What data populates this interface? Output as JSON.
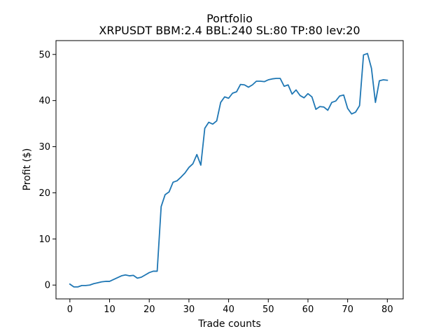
{
  "chart_data": {
    "type": "line",
    "title": "Portfolio",
    "subtitle": "XRPUSDT BBM:2.4 BBL:240 SL:80 TP:80 lev:20",
    "xlabel": "Trade counts",
    "ylabel": "Profit ($)",
    "xlim": [
      -3.5,
      84
    ],
    "ylim": [
      -3,
      53
    ],
    "xticks": [
      0,
      10,
      20,
      30,
      40,
      50,
      60,
      70,
      80
    ],
    "yticks": [
      0,
      10,
      20,
      30,
      40,
      50
    ],
    "grid": false,
    "series_color": "#1f77b4",
    "series": [
      {
        "x": [
          0,
          1,
          2,
          3,
          4,
          5,
          6,
          7,
          8,
          9,
          10,
          11,
          12,
          13,
          14,
          15,
          16,
          17,
          18,
          19,
          20,
          21,
          22,
          23,
          24,
          25,
          26,
          27,
          28,
          29,
          30,
          31,
          32,
          33,
          34,
          35,
          36,
          37,
          38,
          39,
          40,
          41,
          42,
          43,
          44,
          45,
          46,
          47,
          48,
          49,
          50,
          51,
          52,
          53,
          54,
          55,
          56,
          57,
          58,
          59,
          60,
          61,
          62,
          63,
          64,
          65,
          66,
          67,
          68,
          69,
          70,
          71,
          72,
          73,
          74,
          75,
          76,
          77,
          78,
          79,
          80
        ],
        "y": [
          0.2,
          -0.4,
          -0.4,
          -0.1,
          -0.1,
          0.0,
          0.3,
          0.5,
          0.7,
          0.8,
          0.8,
          1.2,
          1.6,
          2.0,
          2.2,
          2.0,
          2.1,
          1.5,
          1.7,
          2.2,
          2.7,
          3.0,
          3.0,
          17.0,
          19.6,
          20.2,
          22.3,
          22.6,
          23.4,
          24.3,
          25.5,
          26.3,
          28.3,
          26.0,
          34.0,
          35.3,
          34.9,
          35.6,
          39.6,
          40.8,
          40.5,
          41.6,
          41.9,
          43.5,
          43.4,
          42.9,
          43.4,
          44.2,
          44.2,
          44.1,
          44.5,
          44.7,
          44.8,
          44.8,
          43.1,
          43.4,
          41.4,
          42.3,
          41.1,
          40.6,
          41.5,
          40.8,
          38.1,
          38.7,
          38.6,
          37.9,
          39.6,
          39.9,
          41.0,
          41.2,
          38.3,
          37.1,
          37.5,
          38.9,
          49.9,
          50.2,
          47.0,
          39.6,
          44.3,
          44.5,
          44.4
        ]
      }
    ]
  }
}
